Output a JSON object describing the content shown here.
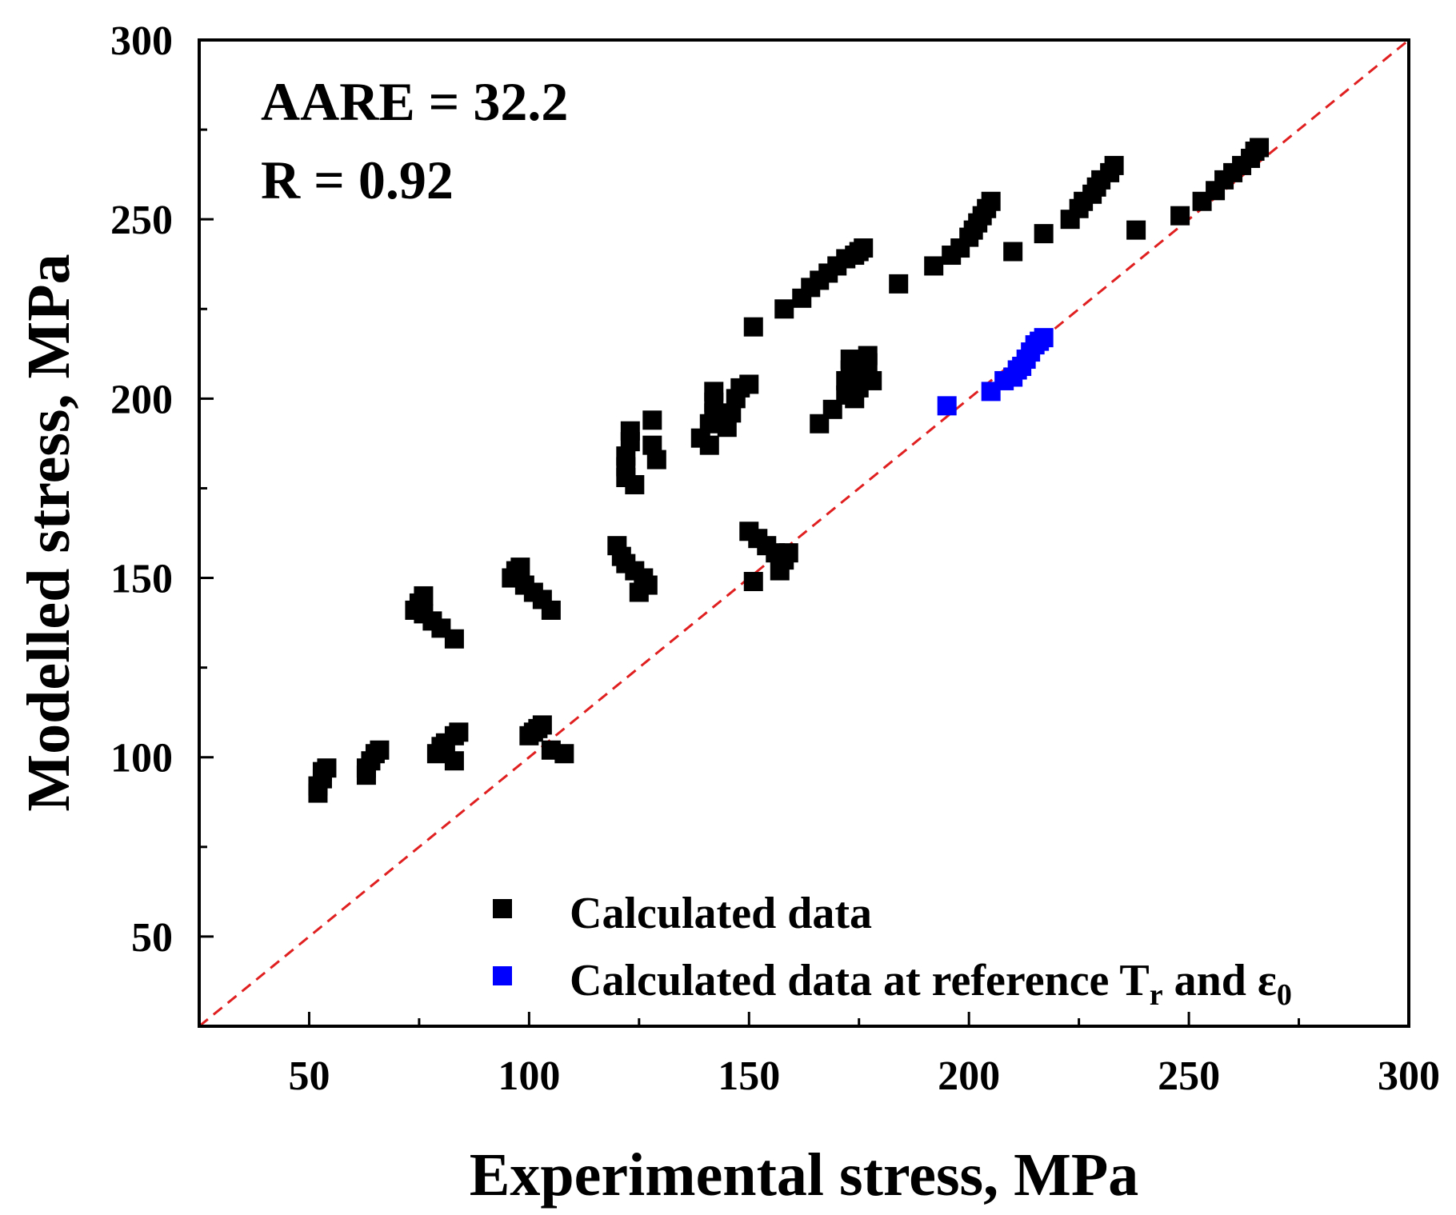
{
  "chart_data": {
    "type": "scatter",
    "xlabel": "Experimental stress, MPa",
    "ylabel": "Modelled stress, MPa",
    "xlim": [
      25,
      300
    ],
    "ylim": [
      25,
      300
    ],
    "xticks": [
      "50",
      "100",
      "150",
      "200",
      "250",
      "300"
    ],
    "yticks": [
      "50",
      "100",
      "150",
      "200",
      "250",
      "300"
    ],
    "reference_line": {
      "type": "y=x",
      "color": "#e02020",
      "style": "dashed"
    },
    "annotations": {
      "aare": "AARE = 32.2",
      "r": "R = 0.92"
    },
    "legend": {
      "position": "bottom-right",
      "entries": [
        {
          "label": "Calculated data",
          "color": "#000000"
        },
        {
          "label_main": "Calculated data at reference T",
          "label_sub_r": "r",
          "label_and": " and ",
          "label_eps": "ε",
          "label_sub_0": "0",
          "color": "#0000ff"
        }
      ]
    },
    "series": [
      {
        "name": "Calculated data",
        "color": "#000000",
        "points": [
          [
            52,
            90
          ],
          [
            52,
            92
          ],
          [
            53,
            94
          ],
          [
            53,
            96
          ],
          [
            54,
            97
          ],
          [
            63,
            95
          ],
          [
            63,
            97
          ],
          [
            64,
            99
          ],
          [
            65,
            101
          ],
          [
            66,
            102
          ],
          [
            79,
            101
          ],
          [
            80,
            103
          ],
          [
            81,
            104
          ],
          [
            83,
            106
          ],
          [
            84,
            107
          ],
          [
            83,
            99
          ],
          [
            100,
            106
          ],
          [
            101,
            107
          ],
          [
            102,
            108
          ],
          [
            103,
            109
          ],
          [
            105,
            102
          ],
          [
            108,
            101
          ],
          [
            74,
            141
          ],
          [
            75,
            143
          ],
          [
            76,
            145
          ],
          [
            76,
            140
          ],
          [
            78,
            138
          ],
          [
            80,
            136
          ],
          [
            83,
            133
          ],
          [
            96,
            150
          ],
          [
            97,
            152
          ],
          [
            98,
            153
          ],
          [
            99,
            148
          ],
          [
            101,
            146
          ],
          [
            103,
            144
          ],
          [
            105,
            141
          ],
          [
            120,
            159
          ],
          [
            121,
            156
          ],
          [
            122,
            154
          ],
          [
            124,
            152
          ],
          [
            126,
            150
          ],
          [
            127,
            148
          ],
          [
            125,
            146
          ],
          [
            122,
            178
          ],
          [
            122,
            181
          ],
          [
            122,
            184
          ],
          [
            123,
            188
          ],
          [
            123,
            191
          ],
          [
            124,
            176
          ],
          [
            128,
            194
          ],
          [
            128,
            187
          ],
          [
            129,
            183
          ],
          [
            139,
            189
          ],
          [
            141,
            187
          ],
          [
            141,
            193
          ],
          [
            142,
            196
          ],
          [
            142,
            199
          ],
          [
            142,
            202
          ],
          [
            145,
            192
          ],
          [
            146,
            196
          ],
          [
            147,
            200
          ],
          [
            148,
            203
          ],
          [
            150,
            204
          ],
          [
            150,
            163
          ],
          [
            152,
            161
          ],
          [
            154,
            159
          ],
          [
            156,
            157
          ],
          [
            158,
            155
          ],
          [
            159,
            157
          ],
          [
            157,
            152
          ],
          [
            151,
            149
          ],
          [
            166,
            193
          ],
          [
            169,
            197
          ],
          [
            172,
            201
          ],
          [
            172,
            205
          ],
          [
            173,
            208
          ],
          [
            173,
            211
          ],
          [
            174,
            200
          ],
          [
            175,
            203
          ],
          [
            176,
            207
          ],
          [
            177,
            210
          ],
          [
            177,
            212
          ],
          [
            178,
            205
          ],
          [
            151,
            220
          ],
          [
            158,
            225
          ],
          [
            162,
            228
          ],
          [
            164,
            231
          ],
          [
            166,
            233
          ],
          [
            168,
            235
          ],
          [
            170,
            237
          ],
          [
            172,
            239
          ],
          [
            174,
            240
          ],
          [
            175,
            241
          ],
          [
            176,
            242
          ],
          [
            184,
            232
          ],
          [
            192,
            237
          ],
          [
            196,
            240
          ],
          [
            198,
            242
          ],
          [
            200,
            245
          ],
          [
            201,
            247
          ],
          [
            202,
            249
          ],
          [
            203,
            251
          ],
          [
            204,
            253
          ],
          [
            205,
            255
          ],
          [
            210,
            241
          ],
          [
            217,
            246
          ],
          [
            223,
            250
          ],
          [
            225,
            253
          ],
          [
            226,
            255
          ],
          [
            228,
            257
          ],
          [
            229,
            259
          ],
          [
            230,
            261
          ],
          [
            232,
            263
          ],
          [
            233,
            265
          ],
          [
            238,
            247
          ],
          [
            248,
            251
          ],
          [
            253,
            255
          ],
          [
            256,
            258
          ],
          [
            258,
            261
          ],
          [
            260,
            263
          ],
          [
            262,
            265
          ],
          [
            264,
            267
          ],
          [
            265,
            269
          ],
          [
            266,
            270
          ]
        ]
      },
      {
        "name": "Calculated data at reference Tr and ε0",
        "color": "#0000ff",
        "points": [
          [
            195,
            198
          ],
          [
            205,
            202
          ],
          [
            208,
            205
          ],
          [
            210,
            206
          ],
          [
            211,
            208
          ],
          [
            212,
            209
          ],
          [
            213,
            211
          ],
          [
            214,
            213
          ],
          [
            215,
            215
          ],
          [
            216,
            216
          ],
          [
            217,
            217
          ]
        ]
      }
    ]
  }
}
